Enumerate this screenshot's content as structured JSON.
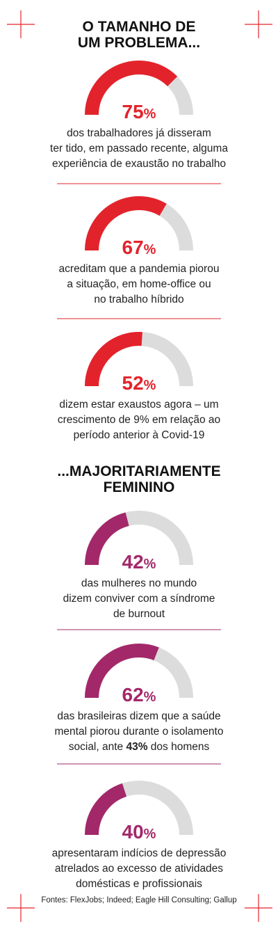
{
  "sections": [
    {
      "title": [
        "O TAMANHO DE",
        "UM PROBLEMA..."
      ],
      "color": "#e3232b",
      "items": [
        {
          "value": 75,
          "value_label": "75%",
          "text": [
            "dos trabalhadores já disseram",
            "ter tido, em passado recente, alguma",
            "experiência de exaustão no trabalho"
          ]
        },
        {
          "value": 67,
          "value_label": "67%",
          "text": [
            "acreditam que a pandemia piorou",
            "a situação, em home-office ou",
            "no trabalho híbrido"
          ]
        },
        {
          "value": 52,
          "value_label": "52%",
          "text": [
            "dizem estar exaustos agora – um",
            "crescimento de 9% em relação ao",
            "período anterior à Covid-19"
          ]
        }
      ]
    },
    {
      "title": [
        "...MAJORITARIAMENTE",
        "FEMININO"
      ],
      "color": "#a3286a",
      "items": [
        {
          "value": 42,
          "value_label": "42%",
          "text": [
            "das mulheres no mundo",
            "dizem conviver com a síndrome",
            "de burnout"
          ]
        },
        {
          "value": 62,
          "value_label": "62%",
          "text": [
            "das brasileiras dizem que a saúde",
            "mental piorou durante o isolamento",
            "social, ante 43% dos homens"
          ],
          "bold": "43%"
        },
        {
          "value": 40,
          "value_label": "40%",
          "text": [
            "apresentaram indícios de depressão",
            "atrelados ao excesso de atividades",
            "domésticas e profissionais"
          ]
        }
      ]
    }
  ],
  "source": "Fontes: FlexJobs; Indeed; Eagle Hill Consulting; Gallup"
}
